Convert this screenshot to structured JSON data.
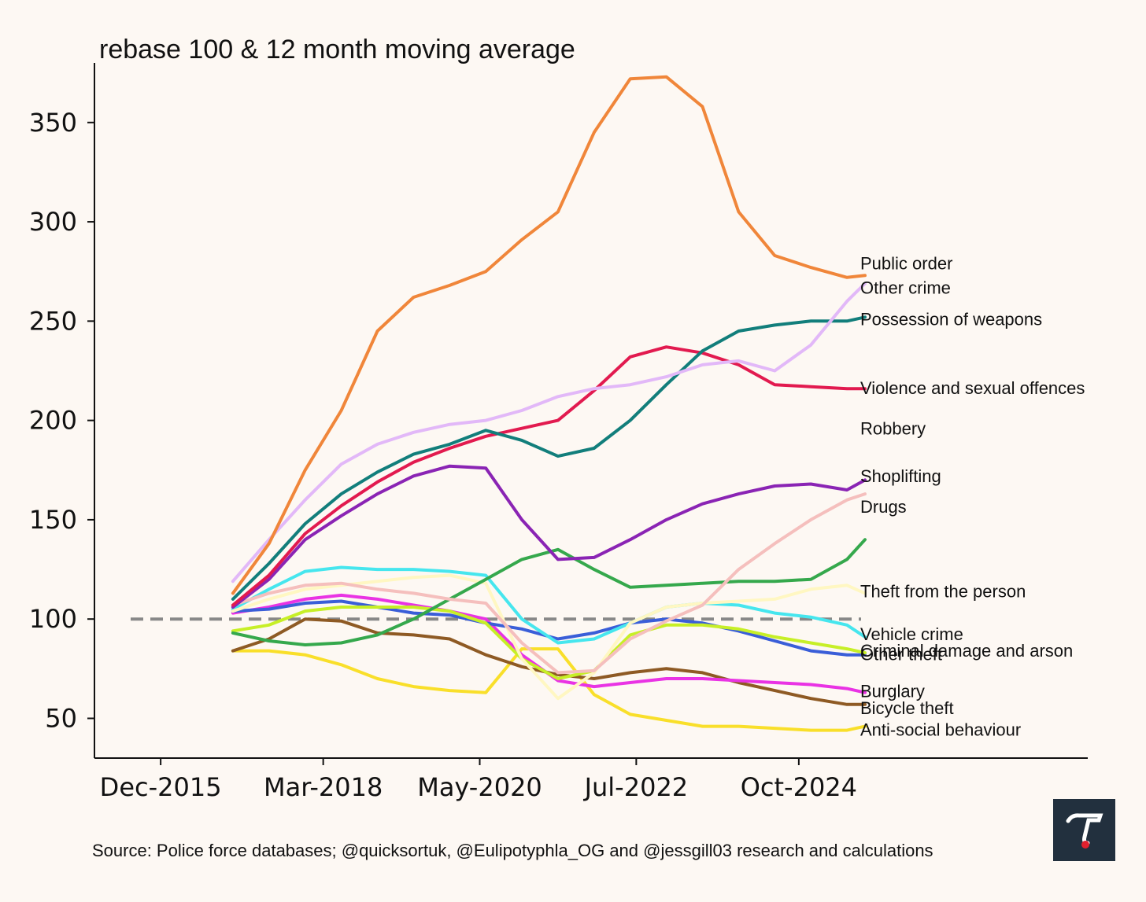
{
  "chart_data": {
    "type": "line",
    "title": "rebase 100 & 12 month moving average",
    "source": "Source: Police force databases; @quicksortuk, @Eulipotyphla_OG and @jessgill03 research and calculations",
    "ylim": [
      30,
      380
    ],
    "y_ticks": [
      "50",
      "100",
      "150",
      "200",
      "250",
      "300",
      "350"
    ],
    "y_tick_values": [
      50,
      100,
      150,
      200,
      250,
      300,
      350
    ],
    "x_ticks": [
      "Dec-2015",
      "Mar-2018",
      "May-2020",
      "Jul-2022",
      "Oct-2024"
    ],
    "x_tick_dates": [
      "2015-12",
      "2018-03",
      "2020-05",
      "2022-07",
      "2024-10"
    ],
    "x_range": [
      "2015-01",
      "2028-10"
    ],
    "reference_line": {
      "y": 100,
      "style": "dashed",
      "color": "#888888"
    },
    "grid": false,
    "legend": "labels at line ends",
    "x": [
      "2016-12",
      "2017-06",
      "2017-12",
      "2018-06",
      "2018-12",
      "2019-06",
      "2019-12",
      "2020-06",
      "2020-12",
      "2021-06",
      "2021-12",
      "2022-06",
      "2022-12",
      "2023-06",
      "2023-12",
      "2024-06",
      "2024-12",
      "2025-06",
      "2025-09"
    ],
    "series": [
      {
        "name": "Public order",
        "color": "#f0863a",
        "values": [
          113,
          138,
          175,
          205,
          245,
          262,
          268,
          275,
          291,
          305,
          345,
          372,
          373,
          358,
          305,
          283,
          277,
          272,
          273
        ]
      },
      {
        "name": "Other crime",
        "color": "#e2b8f8",
        "values": [
          119,
          140,
          160,
          178,
          188,
          194,
          198,
          200,
          205,
          212,
          216,
          218,
          222,
          228,
          230,
          225,
          238,
          260,
          269
        ]
      },
      {
        "name": "Possession of weapons",
        "color": "#127e7b",
        "values": [
          110,
          128,
          148,
          163,
          174,
          183,
          188,
          195,
          190,
          182,
          186,
          200,
          218,
          235,
          245,
          248,
          250,
          250,
          252
        ]
      },
      {
        "name": "Violence and sexual offences",
        "color": "#e21a4f",
        "values": [
          107,
          122,
          143,
          157,
          169,
          179,
          186,
          192,
          196,
          200,
          215,
          232,
          237,
          234,
          228,
          218,
          217,
          216,
          216
        ]
      },
      {
        "name": "Robbery",
        "color": "#8a24b4",
        "values": [
          106,
          120,
          140,
          152,
          163,
          172,
          177,
          176,
          150,
          130,
          131,
          140,
          150,
          158,
          163,
          167,
          168,
          165,
          170
        ]
      },
      {
        "name": "Shoplifting",
        "color": "#f5bfbd",
        "values": [
          107,
          113,
          117,
          118,
          115,
          113,
          110,
          108,
          88,
          73,
          74,
          90,
          99,
          107,
          125,
          138,
          150,
          160,
          163
        ]
      },
      {
        "name": "Drugs",
        "color": "#35a84c",
        "values": [
          93,
          89,
          87,
          88,
          92,
          100,
          110,
          120,
          130,
          135,
          125,
          116,
          117,
          118,
          119,
          119,
          120,
          130,
          140
        ]
      },
      {
        "name": "Theft from the person",
        "color": "#fff7c2",
        "values": [
          104,
          110,
          115,
          117,
          119,
          121,
          122,
          118,
          80,
          60,
          73,
          98,
          106,
          108,
          109,
          110,
          115,
          117,
          113
        ]
      },
      {
        "name": "Vehicle crime",
        "color": "#46e6ee",
        "values": [
          105,
          115,
          124,
          126,
          125,
          125,
          124,
          122,
          100,
          88,
          90,
          98,
          106,
          108,
          107,
          103,
          101,
          97,
          91
        ]
      },
      {
        "name": "Criminal damage and arson",
        "color": "#c7ef27",
        "values": [
          94,
          97,
          104,
          106,
          106,
          106,
          104,
          98,
          80,
          70,
          74,
          92,
          97,
          97,
          95,
          91,
          88,
          85,
          83
        ]
      },
      {
        "name": "Other theft",
        "color": "#3a5ed8",
        "values": [
          104,
          105,
          108,
          109,
          106,
          103,
          102,
          98,
          95,
          90,
          93,
          98,
          100,
          98,
          94,
          89,
          84,
          82,
          82
        ]
      },
      {
        "name": "Burglary",
        "color": "#e933e4",
        "values": [
          103,
          106,
          110,
          112,
          110,
          107,
          104,
          100,
          82,
          69,
          66,
          68,
          70,
          70,
          69,
          68,
          67,
          65,
          63
        ]
      },
      {
        "name": "Bicycle theft",
        "color": "#8e5a24",
        "values": [
          84,
          90,
          100,
          99,
          93,
          92,
          90,
          82,
          76,
          72,
          70,
          73,
          75,
          73,
          68,
          64,
          60,
          57,
          57
        ]
      },
      {
        "name": "Anti-social behaviour",
        "color": "#f9df2a",
        "values": [
          84,
          84,
          82,
          77,
          70,
          66,
          64,
          63,
          85,
          85,
          62,
          52,
          49,
          46,
          46,
          45,
          44,
          44,
          46
        ]
      }
    ]
  }
}
